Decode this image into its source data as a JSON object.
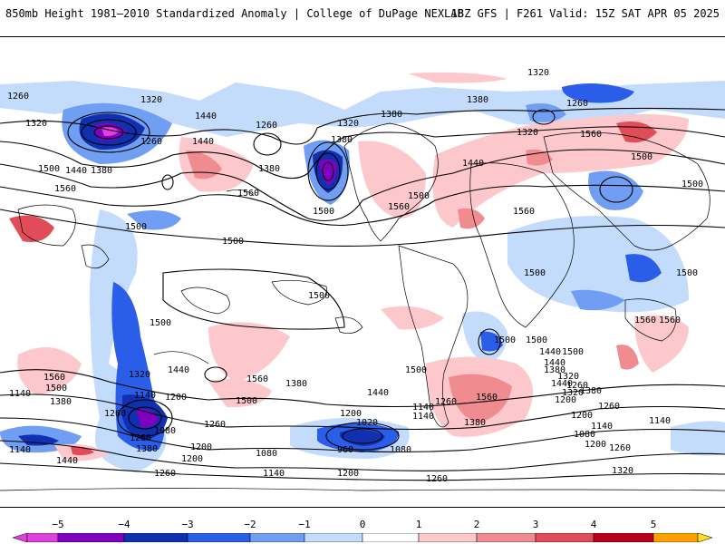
{
  "header": {
    "title_left": "850mb Height 1981–2010 Standardized Anomaly | College of DuPage NEXLAB",
    "title_right": "18Z GFS | F261 Valid: 15Z SAT APR 05 2025"
  },
  "colorbar": {
    "labels": [
      "−5",
      "−4",
      "−3",
      "−2",
      "−1",
      "0",
      "1",
      "2",
      "3",
      "4",
      "5"
    ],
    "colors": [
      "#e040e0",
      "#8000c0",
      "#1030b0",
      "#2a5ee8",
      "#6f9ef2",
      "#c4dcfc",
      "#ffffff",
      "#fcc8cc",
      "#f08c90",
      "#e04c58",
      "#b80018",
      "#ffa000",
      "#ffe020"
    ]
  },
  "contour_labels": [
    "1320",
    "1320",
    "1320",
    "1320",
    "1320",
    "1260",
    "1260",
    "1260",
    "1260",
    "1380",
    "1380",
    "1380",
    "1380",
    "1440",
    "1440",
    "1440",
    "1440",
    "1500",
    "1500",
    "1500",
    "1500",
    "1500",
    "1500",
    "1500",
    "1500",
    "1500",
    "1560",
    "1560",
    "1560",
    "1560",
    "1560",
    "1500",
    "1500",
    "1560",
    "1500",
    "1500",
    "1560",
    "1380",
    "1320",
    "1140",
    "1200",
    "1260",
    "1080",
    "1080",
    "1140",
    "1380",
    "1440",
    "1200",
    "1260",
    "1380",
    "1500",
    "1560",
    "1200",
    "1020",
    "1080",
    "960",
    "1140",
    "1200",
    "1260",
    "1140",
    "1440",
    "1500",
    "1380",
    "1320",
    "1260",
    "1200",
    "1140",
    "1080",
    "1200",
    "1260",
    "1320",
    "1560",
    "1380",
    "1140",
    "1260",
    "1200",
    "1260",
    "1140",
    "1440",
    "1260",
    "1440",
    "1500",
    "1560",
    "1140",
    "1200",
    "1260",
    "1320",
    "1440",
    "1380",
    "1440",
    "1500",
    "1380"
  ],
  "colors": {
    "neg1": "#c4dcfc",
    "neg2": "#6f9ef2",
    "neg3": "#2a5ee8",
    "neg4": "#1030b0",
    "neg5": "#8000c0",
    "pos1": "#fcc8cc",
    "pos2": "#f08c90",
    "pos3": "#e04c58"
  }
}
